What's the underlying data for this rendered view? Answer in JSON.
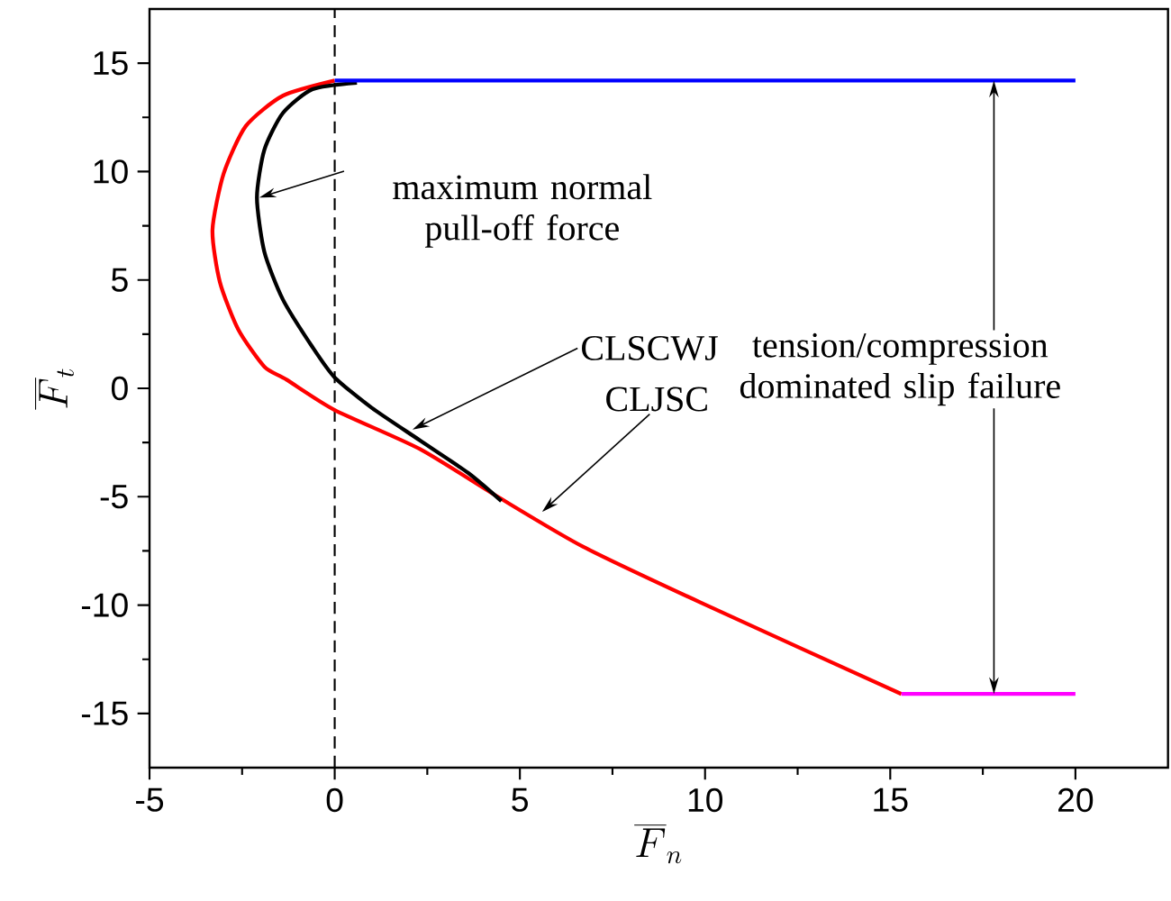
{
  "chart_data": {
    "type": "line",
    "xlabel": "\\overline{F}_n",
    "ylabel": "\\overline{F}_t",
    "xlim": [
      -5,
      22.5
    ],
    "ylim": [
      -17.5,
      17.5
    ],
    "xticks": [
      -5,
      0,
      5,
      10,
      15,
      20
    ],
    "yticks": [
      -15,
      -10,
      -5,
      0,
      5,
      10,
      15
    ],
    "marker": "none",
    "line_style": "solid",
    "series": [
      {
        "color": "#ff0000",
        "x": [
          0,
          -1.4,
          -2.4,
          -3.0,
          -3.3,
          -3.1,
          -2.6,
          -1.9,
          -1.3,
          0,
          2.3,
          4.4,
          6.7,
          9.9,
          15.3
        ],
        "values": [
          14.2,
          13.5,
          12.1,
          9.9,
          7.3,
          4.9,
          2.7,
          1.0,
          0.4,
          -1.0,
          -2.8,
          -5.0,
          -7.3,
          -9.9,
          -14.1
        ]
      },
      {
        "color": "#000000",
        "x": [
          0.6,
          -0.6,
          -1.4,
          -1.9,
          -2.1,
          -1.9,
          -1.4,
          -0.6,
          0,
          1.0,
          2.3,
          3.6,
          4.5
        ],
        "values": [
          14.1,
          13.8,
          12.7,
          11.0,
          8.8,
          6.3,
          4.1,
          1.9,
          0.5,
          -0.9,
          -2.4,
          -3.9,
          -5.2
        ]
      },
      {
        "color": "#0000ff",
        "x": [
          0,
          20
        ],
        "values": [
          14.2,
          14.2
        ]
      },
      {
        "color": "#ff00ff",
        "x": [
          15.3,
          20
        ],
        "values": [
          -14.1,
          -14.1
        ]
      }
    ],
    "ref_lines": [
      {
        "axis": "x",
        "value": 0,
        "color": "#000000",
        "line_style": "dashed"
      }
    ],
    "annotations": [
      "maximum normal pull-off force",
      {
        "text": "CLSCWJ",
        "x": 2.1,
        "y": -1.9
      },
      {
        "text": "CLJSC",
        "x": 5.6,
        "y": -5.7
      },
      {
        "text": "tension/compression dominated slip failure",
        "x": 17.8,
        "y": 14.2
      }
    ]
  }
}
